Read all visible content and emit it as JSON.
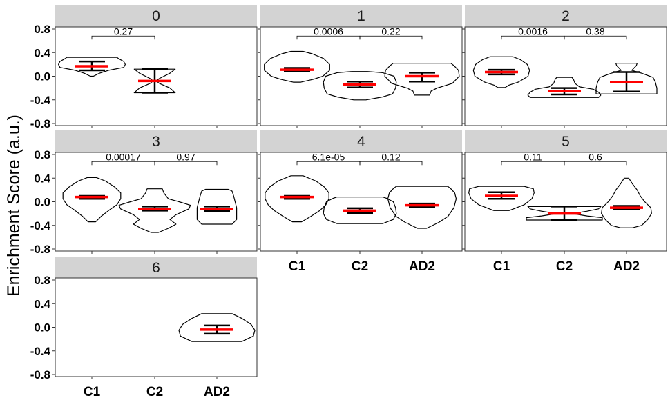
{
  "chart_data": {
    "type": "violin",
    "ylabel": "Enrichment Score (a.u.)",
    "ylim": [
      -0.8,
      0.8
    ],
    "yticks": [
      0.8,
      0.4,
      0.0,
      -0.4,
      -0.8
    ],
    "ytick_labels": [
      "0.8",
      "0.4",
      "0.0",
      "-0.4",
      "-0.8"
    ],
    "categories": [
      "C1",
      "C2",
      "AD2"
    ],
    "median_color": "#ff0000",
    "strip_color": "#d3d3d3",
    "panels": [
      {
        "label": "0",
        "groups": [
          {
            "category": "C1",
            "min": 0.0,
            "max": 0.32,
            "median": 0.17,
            "ci": [
              0.1,
              0.25
            ],
            "profile": [
              [
                0.0,
                0.02
              ],
              [
                0.05,
                0.1
              ],
              [
                0.1,
                0.22
              ],
              [
                0.15,
                0.42
              ],
              [
                0.2,
                0.44
              ],
              [
                0.25,
                0.42
              ],
              [
                0.3,
                0.35
              ],
              [
                0.32,
                0.33
              ]
            ]
          },
          {
            "category": "C2",
            "min": -0.28,
            "max": 0.12,
            "median": -0.08,
            "ci": [
              -0.28,
              0.12
            ],
            "profile": [
              [
                -0.28,
                0.27
              ],
              [
                -0.2,
                0.2
              ],
              [
                -0.12,
                0.06
              ],
              [
                -0.08,
                0.02
              ],
              [
                -0.04,
                0.06
              ],
              [
                0.05,
                0.2
              ],
              [
                0.12,
                0.27
              ]
            ]
          }
        ],
        "comparisons": [
          {
            "pair": [
              "C1",
              "C2"
            ],
            "p": "0.27"
          }
        ]
      },
      {
        "label": "1",
        "groups": [
          {
            "category": "C1",
            "min": -0.1,
            "max": 0.42,
            "median": 0.11,
            "ci": [
              0.08,
              0.14
            ],
            "profile": [
              [
                -0.1,
                0.05
              ],
              [
                -0.05,
                0.22
              ],
              [
                0.0,
                0.34
              ],
              [
                0.1,
                0.43
              ],
              [
                0.2,
                0.43
              ],
              [
                0.3,
                0.35
              ],
              [
                0.38,
                0.2
              ],
              [
                0.42,
                0.08
              ]
            ]
          },
          {
            "category": "C2",
            "min": -0.4,
            "max": 0.08,
            "median": -0.14,
            "ci": [
              -0.19,
              -0.09
            ],
            "profile": [
              [
                -0.4,
                0.08
              ],
              [
                -0.35,
                0.3
              ],
              [
                -0.3,
                0.43
              ],
              [
                -0.2,
                0.47
              ],
              [
                -0.1,
                0.48
              ],
              [
                0.0,
                0.45
              ],
              [
                0.06,
                0.3
              ],
              [
                0.08,
                0.1
              ]
            ]
          },
          {
            "category": "AD2",
            "min": -0.32,
            "max": 0.22,
            "median": 0.0,
            "ci": [
              -0.09,
              0.06
            ],
            "profile": [
              [
                -0.32,
                0.1
              ],
              [
                -0.25,
                0.12
              ],
              [
                -0.2,
                0.2
              ],
              [
                -0.12,
                0.4
              ],
              [
                0.0,
                0.49
              ],
              [
                0.1,
                0.48
              ],
              [
                0.18,
                0.42
              ],
              [
                0.22,
                0.38
              ]
            ]
          }
        ],
        "comparisons": [
          {
            "pair": [
              "C1",
              "C2"
            ],
            "p": "0.0006"
          },
          {
            "pair": [
              "C2",
              "AD2"
            ],
            "p": "0.22"
          }
        ]
      },
      {
        "label": "2",
        "groups": [
          {
            "category": "C1",
            "min": -0.19,
            "max": 0.33,
            "median": 0.07,
            "ci": [
              0.03,
              0.11
            ],
            "profile": [
              [
                -0.19,
                0.05
              ],
              [
                -0.15,
                0.1
              ],
              [
                -0.1,
                0.22
              ],
              [
                0.0,
                0.35
              ],
              [
                0.1,
                0.37
              ],
              [
                0.2,
                0.34
              ],
              [
                0.28,
                0.25
              ],
              [
                0.33,
                0.15
              ]
            ]
          },
          {
            "category": "C2",
            "min": -0.36,
            "max": -0.02,
            "median": -0.25,
            "ci": [
              -0.31,
              -0.2
            ],
            "profile": [
              [
                -0.36,
                0.45
              ],
              [
                -0.32,
                0.48
              ],
              [
                -0.27,
                0.45
              ],
              [
                -0.22,
                0.38
              ],
              [
                -0.18,
                0.2
              ],
              [
                -0.12,
                0.14
              ],
              [
                -0.05,
                0.12
              ],
              [
                -0.02,
                0.1
              ]
            ]
          },
          {
            "category": "AD2",
            "min": -0.3,
            "max": 0.22,
            "median": -0.1,
            "ci": [
              -0.26,
              0.07
            ],
            "profile": [
              [
                -0.3,
                0.4
              ],
              [
                -0.2,
                0.4
              ],
              [
                -0.1,
                0.38
              ],
              [
                -0.02,
                0.35
              ],
              [
                0.05,
                0.2
              ],
              [
                0.1,
                0.07
              ],
              [
                0.14,
                0.1
              ],
              [
                0.18,
                0.13
              ],
              [
                0.22,
                0.14
              ]
            ]
          }
        ],
        "comparisons": [
          {
            "pair": [
              "C1",
              "C2"
            ],
            "p": "0.0016"
          },
          {
            "pair": [
              "C2",
              "AD2"
            ],
            "p": "0.38"
          }
        ]
      },
      {
        "label": "3",
        "groups": [
          {
            "category": "C1",
            "min": -0.34,
            "max": 0.41,
            "median": 0.08,
            "ci": [
              0.05,
              0.1
            ],
            "profile": [
              [
                -0.34,
                0.05
              ],
              [
                -0.25,
                0.12
              ],
              [
                -0.15,
                0.22
              ],
              [
                -0.05,
                0.33
              ],
              [
                0.05,
                0.38
              ],
              [
                0.15,
                0.38
              ],
              [
                0.25,
                0.3
              ],
              [
                0.35,
                0.18
              ],
              [
                0.41,
                0.06
              ]
            ]
          },
          {
            "category": "C2",
            "min": -0.52,
            "max": 0.22,
            "median": -0.12,
            "ci": [
              -0.15,
              -0.08
            ],
            "profile": [
              [
                -0.52,
                0.05
              ],
              [
                -0.45,
                0.18
              ],
              [
                -0.38,
                0.28
              ],
              [
                -0.3,
                0.2
              ],
              [
                -0.22,
                0.28
              ],
              [
                -0.12,
                0.45
              ],
              [
                -0.06,
                0.47
              ],
              [
                0.0,
                0.32
              ],
              [
                0.05,
                0.18
              ],
              [
                0.15,
                0.12
              ],
              [
                0.22,
                0.1
              ]
            ]
          },
          {
            "category": "AD2",
            "min": -0.38,
            "max": 0.21,
            "median": -0.12,
            "ci": [
              -0.16,
              -0.08
            ],
            "profile": [
              [
                -0.38,
                0.2
              ],
              [
                -0.3,
                0.26
              ],
              [
                -0.2,
                0.26
              ],
              [
                -0.1,
                0.26
              ],
              [
                0.0,
                0.24
              ],
              [
                0.1,
                0.22
              ],
              [
                0.18,
                0.2
              ],
              [
                0.21,
                0.15
              ]
            ]
          }
        ],
        "comparisons": [
          {
            "pair": [
              "C1",
              "C2"
            ],
            "p": "0.00017"
          },
          {
            "pair": [
              "C2",
              "AD2"
            ],
            "p": "0.97"
          }
        ]
      },
      {
        "label": "4",
        "groups": [
          {
            "category": "C1",
            "min": -0.34,
            "max": 0.44,
            "median": 0.08,
            "ci": [
              0.05,
              0.1
            ],
            "profile": [
              [
                -0.34,
                0.06
              ],
              [
                -0.25,
                0.18
              ],
              [
                -0.15,
                0.3
              ],
              [
                -0.05,
                0.38
              ],
              [
                0.05,
                0.42
              ],
              [
                0.15,
                0.42
              ],
              [
                0.25,
                0.36
              ],
              [
                0.35,
                0.25
              ],
              [
                0.44,
                0.08
              ]
            ]
          },
          {
            "category": "C2",
            "min": -0.37,
            "max": 0.08,
            "median": -0.15,
            "ci": [
              -0.19,
              -0.11
            ],
            "profile": [
              [
                -0.37,
                0.3
              ],
              [
                -0.3,
                0.44
              ],
              [
                -0.2,
                0.48
              ],
              [
                -0.1,
                0.47
              ],
              [
                0.0,
                0.44
              ],
              [
                0.06,
                0.35
              ],
              [
                0.08,
                0.3
              ]
            ]
          },
          {
            "category": "AD2",
            "min": -0.45,
            "max": 0.26,
            "median": -0.06,
            "ci": [
              -0.09,
              -0.03
            ],
            "profile": [
              [
                -0.45,
                0.06
              ],
              [
                -0.35,
                0.22
              ],
              [
                -0.25,
                0.34
              ],
              [
                -0.1,
                0.42
              ],
              [
                0.05,
                0.45
              ],
              [
                0.15,
                0.43
              ],
              [
                0.22,
                0.38
              ],
              [
                0.26,
                0.34
              ]
            ]
          }
        ],
        "comparisons": [
          {
            "pair": [
              "C1",
              "C2"
            ],
            "p": "6.1e-05"
          },
          {
            "pair": [
              "C2",
              "AD2"
            ],
            "p": "0.12"
          }
        ]
      },
      {
        "label": "5",
        "groups": [
          {
            "category": "C1",
            "min": -0.15,
            "max": 0.26,
            "median": 0.1,
            "ci": [
              0.05,
              0.16
            ],
            "profile": [
              [
                -0.15,
                0.1
              ],
              [
                -0.1,
                0.2
              ],
              [
                -0.05,
                0.3
              ],
              [
                0.05,
                0.4
              ],
              [
                0.15,
                0.43
              ],
              [
                0.22,
                0.42
              ],
              [
                0.26,
                0.3
              ]
            ]
          },
          {
            "category": "C2",
            "min": -0.31,
            "max": -0.08,
            "median": -0.2,
            "ci": [
              -0.31,
              -0.08
            ],
            "profile": [
              [
                -0.31,
                0.5
              ],
              [
                -0.27,
                0.5
              ],
              [
                -0.24,
                0.3
              ],
              [
                -0.2,
                0.1
              ],
              [
                -0.16,
                0.3
              ],
              [
                -0.12,
                0.45
              ],
              [
                -0.08,
                0.48
              ]
            ]
          },
          {
            "category": "AD2",
            "min": -0.44,
            "max": 0.4,
            "median": -0.1,
            "ci": [
              -0.13,
              -0.07
            ],
            "profile": [
              [
                -0.44,
                0.08
              ],
              [
                -0.4,
                0.2
              ],
              [
                -0.3,
                0.28
              ],
              [
                -0.2,
                0.33
              ],
              [
                -0.1,
                0.32
              ],
              [
                0.0,
                0.24
              ],
              [
                0.1,
                0.18
              ],
              [
                0.2,
                0.14
              ],
              [
                0.3,
                0.08
              ],
              [
                0.4,
                0.03
              ]
            ]
          }
        ],
        "comparisons": [
          {
            "pair": [
              "C1",
              "C2"
            ],
            "p": "0.11"
          },
          {
            "pair": [
              "C2",
              "AD2"
            ],
            "p": "0.6"
          }
        ]
      },
      {
        "label": "6",
        "groups": [
          {
            "category": "AD2",
            "min": -0.24,
            "max": 0.23,
            "median": -0.04,
            "ci": [
              -0.11,
              0.03
            ],
            "profile": [
              [
                -0.24,
                0.33
              ],
              [
                -0.15,
                0.48
              ],
              [
                -0.05,
                0.5
              ],
              [
                0.05,
                0.45
              ],
              [
                0.15,
                0.33
              ],
              [
                0.23,
                0.2
              ]
            ]
          }
        ],
        "comparisons": []
      }
    ]
  }
}
